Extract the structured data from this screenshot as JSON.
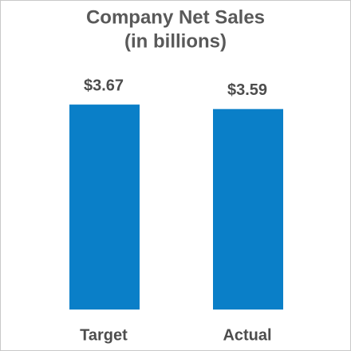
{
  "chart_data": {
    "type": "bar",
    "title": "Company Net Sales",
    "subtitle": "(in billions)",
    "categories": [
      "Target",
      "Actual"
    ],
    "values": [
      3.67,
      3.59
    ],
    "value_labels": [
      "$3.67",
      "$3.59"
    ],
    "color": "#0a7fc8"
  }
}
